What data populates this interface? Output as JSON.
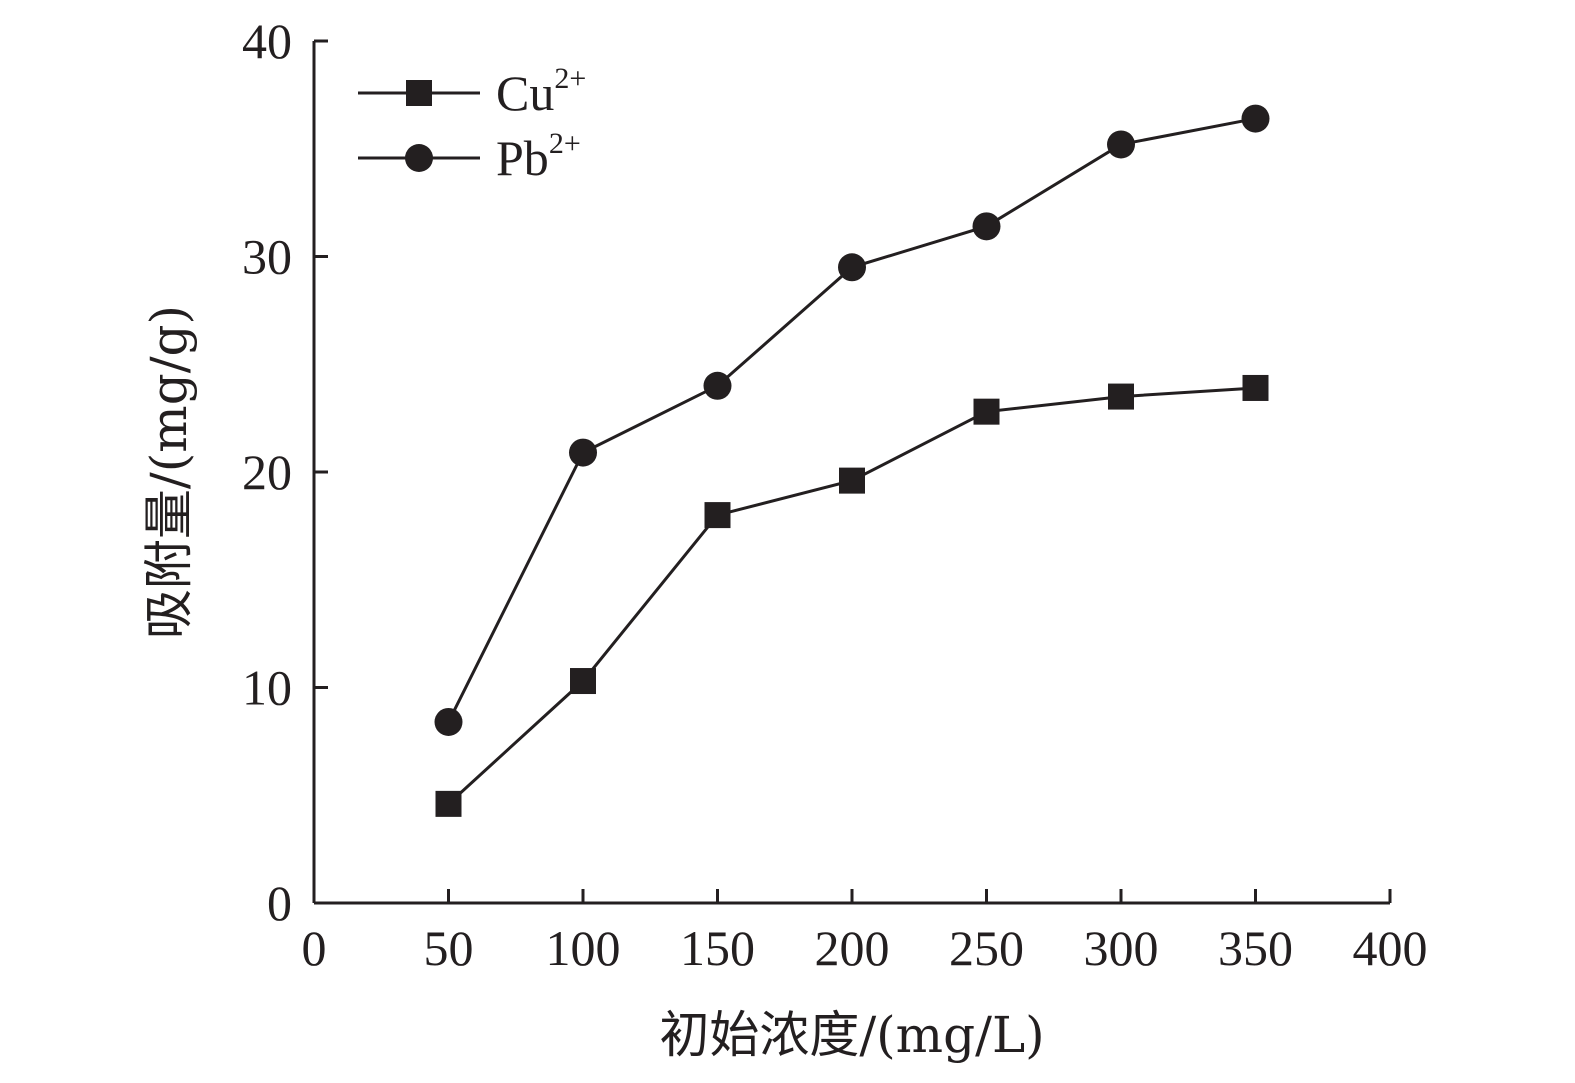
{
  "colors": {
    "ink": "#231f20",
    "background": "#ffffff"
  },
  "chart_data": {
    "type": "line",
    "xlabel": "初始浓度/(mg/L)",
    "ylabel": "吸附量/(mg/g)",
    "xlim": [
      0,
      400
    ],
    "ylim": [
      0,
      40
    ],
    "xticks": [
      0,
      50,
      100,
      150,
      200,
      250,
      300,
      350,
      400
    ],
    "yticks": [
      0,
      10,
      20,
      30,
      40
    ],
    "x_tick_labels": [
      "0",
      "50",
      "100",
      "150",
      "200",
      "250",
      "300",
      "350",
      "400"
    ],
    "y_tick_labels": [
      "0",
      "10",
      "20",
      "30",
      "40"
    ],
    "grid": false,
    "legend_position": "top-left",
    "x": [
      50,
      100,
      150,
      200,
      250,
      300,
      350
    ],
    "series": [
      {
        "name": "Cu",
        "name_superscript": "2+",
        "marker": "square",
        "values": [
          4.6,
          10.3,
          18.0,
          19.6,
          22.8,
          23.5,
          23.9
        ]
      },
      {
        "name": "Pb",
        "name_superscript": "2+",
        "marker": "circle",
        "values": [
          8.4,
          20.9,
          24.0,
          29.5,
          31.4,
          35.2,
          36.4
        ]
      }
    ]
  }
}
